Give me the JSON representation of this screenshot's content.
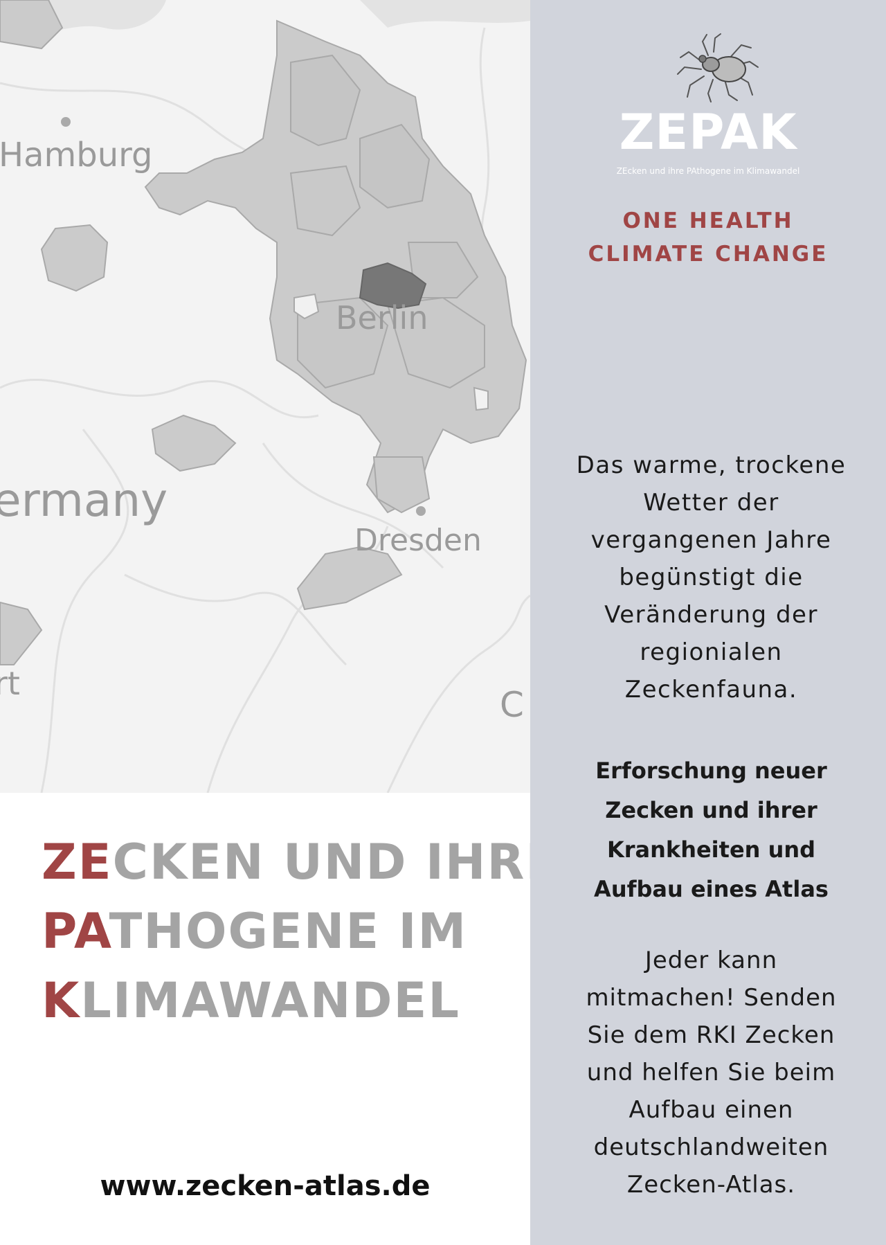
{
  "map": {
    "labels": {
      "hamburg": "Hamburg",
      "germany": "ermany",
      "berlin": "Berlin",
      "dresden": "Dresden",
      "left_fragment": "rt",
      "right_fragment": "C"
    }
  },
  "brand": {
    "logo_icon": "tick-icon",
    "name": "ZEPAK",
    "subtitle": "ZEcken und ihre PAthogene im Klimawandel"
  },
  "tagline": {
    "line1": "ONE HEALTH",
    "line2": "CLIMATE CHANGE"
  },
  "headline": {
    "lines": [
      {
        "accent": "ZE",
        "rest": "CKEN UND IHRE"
      },
      {
        "accent": "PA",
        "rest": "THOGENE IM"
      },
      {
        "accent": "K",
        "rest": "LIMAWANDEL"
      }
    ]
  },
  "website": "www.zecken-atlas.de",
  "paragraph1": {
    "lines": [
      "Das warme, trockene",
      "Wetter der",
      "vergangenen Jahre",
      "begünstigt die",
      "Veränderung der",
      "regionialen",
      "Zeckenfauna."
    ]
  },
  "paragraph2": {
    "lines": [
      "Erforschung neuer",
      "Zecken und ihrer",
      "Krankheiten und",
      "Aufbau eines Atlas"
    ]
  },
  "paragraph3": {
    "lines": [
      "Jeder kann",
      "mitmachen! Senden",
      "Sie dem RKI Zecken",
      "und helfen Sie beim",
      "Aufbau einen",
      "deutschlandweiten",
      "Zecken-Atlas."
    ]
  },
  "colors": {
    "accent": "#a04545",
    "side_panel": "#d1d4dc",
    "headline_gray": "#a4a4a4",
    "map_region": "#c8c8c8",
    "berlin_region": "#777777"
  }
}
